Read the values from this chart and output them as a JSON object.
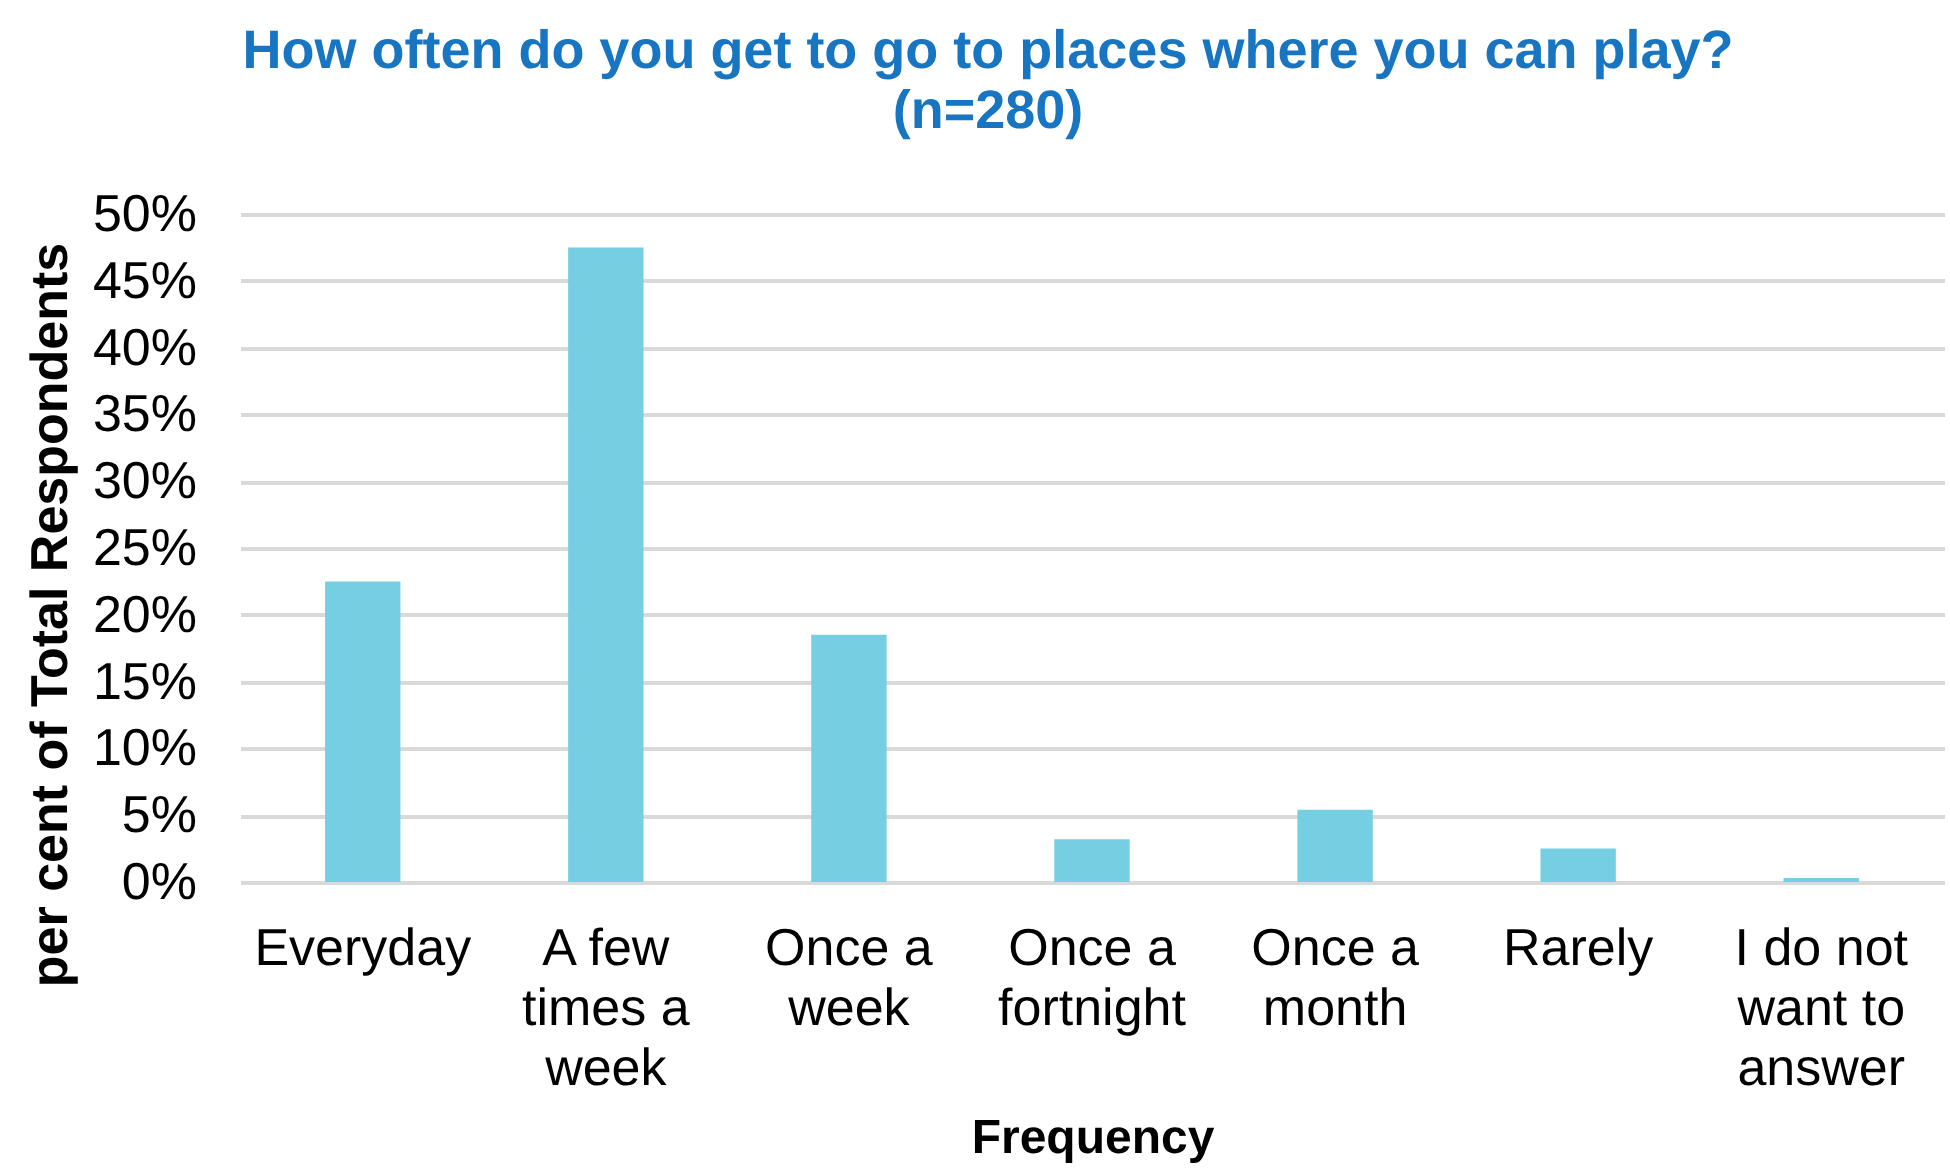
{
  "chart_data": {
    "type": "bar",
    "title": "How often do you get to go to places where you can play? (n=280)",
    "xlabel": "Frequency",
    "ylabel": "per cent of Total Respondents",
    "categories": [
      "Everyday",
      "A few times a week",
      "Once a week",
      "Once a fortnight",
      "Once a month",
      "Rarely",
      "I do not want to answer"
    ],
    "values": [
      22.5,
      47.5,
      18.5,
      3.2,
      5.4,
      2.5,
      0.3
    ],
    "color": "#75cee1",
    "ylim": [
      0,
      50
    ],
    "yticks": [
      {
        "value": 0,
        "label": "0%"
      },
      {
        "value": 5,
        "label": "5%"
      },
      {
        "value": 10,
        "label": "10%"
      },
      {
        "value": 15,
        "label": "15%"
      },
      {
        "value": 20,
        "label": "20%"
      },
      {
        "value": 25,
        "label": "25%"
      },
      {
        "value": 30,
        "label": "30%"
      },
      {
        "value": 35,
        "label": "35%"
      },
      {
        "value": 40,
        "label": "40%"
      },
      {
        "value": 45,
        "label": "45%"
      },
      {
        "value": 50,
        "label": "50%"
      }
    ],
    "grid": "y"
  }
}
